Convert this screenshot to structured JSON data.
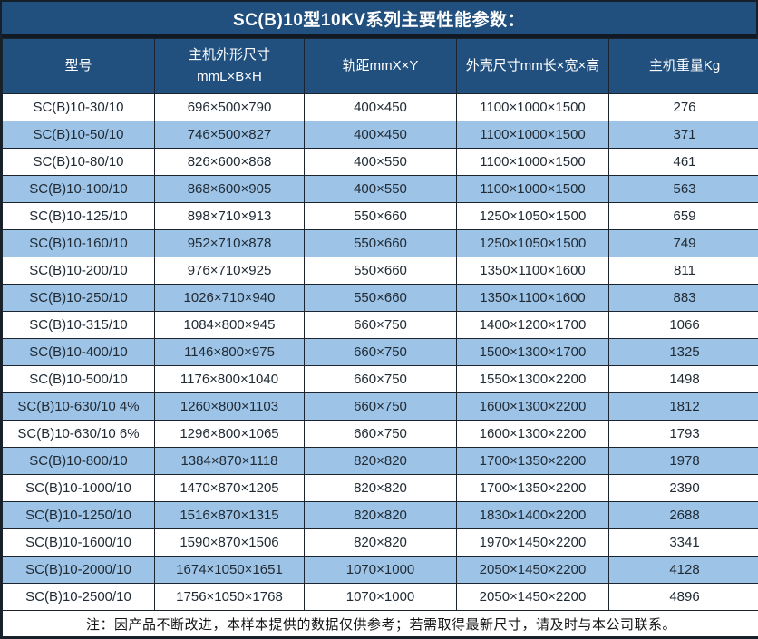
{
  "title": "SC(B)10型10KV系列主要性能参数：",
  "colors": {
    "header_bg": "#21507f",
    "alt_row_bg": "#9dc3e6",
    "border": "#1c242d",
    "title_text": "#ffffff",
    "data_text": "#212b35"
  },
  "table": {
    "headers": [
      {
        "line1": "型号"
      },
      {
        "line1": "主机外形尺寸",
        "line2": "mmL×B×H"
      },
      {
        "line1": "轨距mmX×Y"
      },
      {
        "line1": "外壳尺寸mm长×宽×高"
      },
      {
        "line1": "主机重量Kg"
      }
    ],
    "rows": [
      [
        "SC(B)10-30/10",
        "696×500×790",
        "400×450",
        "1100×1000×1500",
        "276"
      ],
      [
        "SC(B)10-50/10",
        "746×500×827",
        "400×450",
        "1100×1000×1500",
        "371"
      ],
      [
        "SC(B)10-80/10",
        "826×600×868",
        "400×550",
        "1100×1000×1500",
        "461"
      ],
      [
        "SC(B)10-100/10",
        "868×600×905",
        "400×550",
        "1100×1000×1500",
        "563"
      ],
      [
        "SC(B)10-125/10",
        "898×710×913",
        "550×660",
        "1250×1050×1500",
        "659"
      ],
      [
        "SC(B)10-160/10",
        "952×710×878",
        "550×660",
        "1250×1050×1500",
        "749"
      ],
      [
        "SC(B)10-200/10",
        "976×710×925",
        "550×660",
        "1350×1100×1600",
        "811"
      ],
      [
        "SC(B)10-250/10",
        "1026×710×940",
        "550×660",
        "1350×1100×1600",
        "883"
      ],
      [
        "SC(B)10-315/10",
        "1084×800×945",
        "660×750",
        "1400×1200×1700",
        "1066"
      ],
      [
        "SC(B)10-400/10",
        "1146×800×975",
        "660×750",
        "1500×1300×1700",
        "1325"
      ],
      [
        "SC(B)10-500/10",
        "1176×800×1040",
        "660×750",
        "1550×1300×2200",
        "1498"
      ],
      [
        "SC(B)10-630/10 4%",
        "1260×800×1103",
        "660×750",
        "1600×1300×2200",
        "1812"
      ],
      [
        "SC(B)10-630/10 6%",
        "1296×800×1065",
        "660×750",
        "1600×1300×2200",
        "1793"
      ],
      [
        "SC(B)10-800/10",
        "1384×870×1118",
        "820×820",
        "1700×1350×2200",
        "1978"
      ],
      [
        "SC(B)10-1000/10",
        "1470×870×1205",
        "820×820",
        "1700×1350×2200",
        "2390"
      ],
      [
        "SC(B)10-1250/10",
        "1516×870×1315",
        "820×820",
        "1830×1400×2200",
        "2688"
      ],
      [
        "SC(B)10-1600/10",
        "1590×870×1506",
        "820×820",
        "1970×1450×2200",
        "3341"
      ],
      [
        "SC(B)10-2000/10",
        "1674×1050×1651",
        "1070×1000",
        "2050×1450×2200",
        "4128"
      ],
      [
        "SC(B)10-2500/10",
        "1756×1050×1768",
        "1070×1000",
        "2050×1450×2200",
        "4896"
      ]
    ],
    "footer_note": "注：因产品不断改进，本样本提供的数据仅供参考；若需取得最新尺寸，请及时与本公司联系。"
  }
}
